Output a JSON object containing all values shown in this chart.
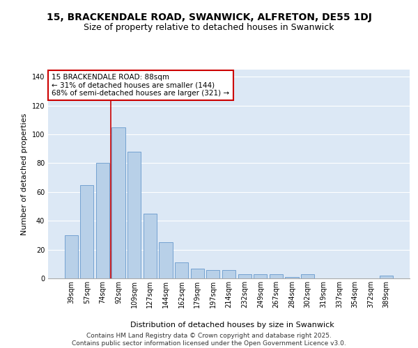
{
  "title_line1": "15, BRACKENDALE ROAD, SWANWICK, ALFRETON, DE55 1DJ",
  "title_line2": "Size of property relative to detached houses in Swanwick",
  "xlabel": "Distribution of detached houses by size in Swanwick",
  "ylabel": "Number of detached properties",
  "categories": [
    "39sqm",
    "57sqm",
    "74sqm",
    "92sqm",
    "109sqm",
    "127sqm",
    "144sqm",
    "162sqm",
    "179sqm",
    "197sqm",
    "214sqm",
    "232sqm",
    "249sqm",
    "267sqm",
    "284sqm",
    "302sqm",
    "319sqm",
    "337sqm",
    "354sqm",
    "372sqm",
    "389sqm"
  ],
  "values": [
    30,
    65,
    80,
    105,
    88,
    45,
    25,
    11,
    7,
    6,
    6,
    3,
    3,
    3,
    1,
    3,
    0,
    0,
    0,
    0,
    2
  ],
  "bar_color": "#b8d0e8",
  "bar_edge_color": "#6699cc",
  "background_color": "#dce8f5",
  "grid_color": "#ffffff",
  "red_line_color": "#cc0000",
  "annotation_text": "15 BRACKENDALE ROAD: 88sqm\n← 31% of detached houses are smaller (144)\n68% of semi-detached houses are larger (321) →",
  "annotation_box_color": "#ffffff",
  "annotation_box_edge": "#cc0000",
  "ylim": [
    0,
    145
  ],
  "yticks": [
    0,
    20,
    40,
    60,
    80,
    100,
    120,
    140
  ],
  "footer_text": "Contains HM Land Registry data © Crown copyright and database right 2025.\nContains public sector information licensed under the Open Government Licence v3.0.",
  "fig_bg": "#ffffff",
  "title_fontsize": 10,
  "subtitle_fontsize": 9,
  "axis_label_fontsize": 8,
  "tick_fontsize": 7,
  "annotation_fontsize": 7.5,
  "footer_fontsize": 6.5
}
